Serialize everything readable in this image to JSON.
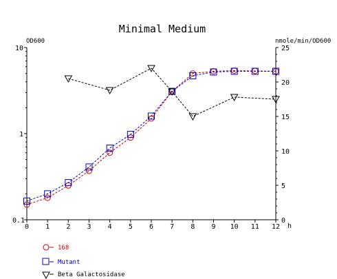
{
  "chart_data": {
    "type": "line",
    "title": "Minimal Medium",
    "x_unit": "h",
    "left_axis_label": "OD600",
    "right_axis_label": "nmole/min/OD600",
    "left_scale": "log",
    "left_ylim": [
      0.1,
      10
    ],
    "left_tick_labels": [
      "10",
      "1",
      "0.1"
    ],
    "right_ylim": [
      0,
      25
    ],
    "right_ticks": [
      0,
      5,
      10,
      15,
      20,
      25
    ],
    "x_ticks": [
      0,
      1,
      2,
      3,
      4,
      5,
      6,
      7,
      8,
      9,
      10,
      11,
      12
    ],
    "grid": false,
    "legend_placement": "bottom-left",
    "series": [
      {
        "name": "168",
        "axis": "left",
        "marker": "circle",
        "color": "#cc0000",
        "x": [
          0,
          1,
          2,
          3,
          4,
          5,
          6,
          7,
          8,
          9,
          10,
          11,
          12
        ],
        "y": [
          0.15,
          0.18,
          0.25,
          0.37,
          0.6,
          0.9,
          1.5,
          3.1,
          5.0,
          5.3,
          5.4,
          5.35,
          5.3
        ]
      },
      {
        "name": "Mutant",
        "axis": "left",
        "marker": "square",
        "color": "#0000cc",
        "x": [
          0,
          1,
          2,
          3,
          4,
          5,
          6,
          7,
          8,
          9,
          10,
          11,
          12
        ],
        "y": [
          0.165,
          0.2,
          0.27,
          0.41,
          0.68,
          0.98,
          1.6,
          3.1,
          4.7,
          5.2,
          5.3,
          5.3,
          5.3
        ]
      },
      {
        "name": "Beta Galactosidase",
        "axis": "right",
        "marker": "triangle-down",
        "color": "#000000",
        "x": [
          2,
          4,
          6,
          7,
          8,
          10,
          12
        ],
        "y": [
          20.5,
          18.8,
          22.0,
          18.6,
          15.0,
          17.8,
          17.5
        ]
      }
    ]
  }
}
